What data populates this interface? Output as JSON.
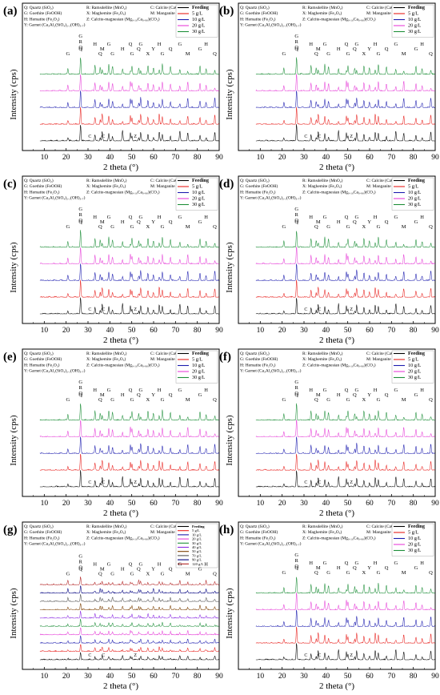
{
  "figure": {
    "colors": {
      "Feeding": "#000000",
      "5 g/L": "#e8201d",
      "10 g/L": "#1d1daf",
      "20 g/L": "#e641d8",
      "30 g/L": "#1f8f3a",
      "40 g/L": "#8a2be2",
      "50 g/L": "#7b3f00",
      "70 g/L": "#555555",
      "90 g/L": "#000080",
      "120 g/L": "#b22222"
    },
    "phase_legend": [
      "Q: Quartz (SiO₂)",
      "R: Ramsdellite (MnO₂)",
      "C: Calcite (CaCO₃)",
      "G: Goethite (FeOOH)",
      "X: Maghemite (Fe₂O₃)",
      "M: Manganite (MnOOH)",
      "H: Hematite (Fe₂O₃)",
      "Z: Calcite-magnesian (Mg₀.₁₀Ca₀.₉₀)(CO₃)",
      "Y: Garnet (Ca₃Al₂(SiO₄)₂.₁(OH)₃.₇)"
    ],
    "peak_labels": {
      "top": [
        "G",
        "Q",
        "H",
        "Q",
        "M",
        "G",
        "G",
        "H",
        "Q",
        "G",
        "Q",
        "G",
        "X",
        "Y",
        "H",
        "G",
        "Q",
        "G",
        "M",
        "G",
        "H",
        "Q",
        "G",
        "H",
        "Y",
        "G",
        "Q",
        "M",
        "H",
        "Q",
        "G",
        "Q",
        "M",
        "G",
        "H",
        "Q",
        "Q",
        "M",
        "G",
        "H"
      ],
      "bottom": [
        "C",
        "Z",
        "C"
      ]
    }
  },
  "chart_data": [
    {
      "panel": "(a)",
      "type": "line",
      "xlabel": "2 theta (°)",
      "ylabel": "Intensity (cps)",
      "xlim": [
        0,
        90
      ],
      "xticks": [
        10,
        20,
        30,
        40,
        50,
        60,
        70,
        80,
        90
      ],
      "series": [
        {
          "name": "Feeding"
        },
        {
          "name": "5 g/L"
        },
        {
          "name": "10 g/L"
        },
        {
          "name": "20 g/L"
        },
        {
          "name": "30 g/L"
        }
      ],
      "major_peaks_2theta": [
        20.8,
        26.6,
        33.2,
        35.6,
        36.5,
        39.5,
        41.2,
        45.8,
        49.4,
        50.1,
        53.2,
        54.1,
        57.4,
        59.9,
        62.6,
        64.0,
        67.7,
        72.0,
        75.6,
        81.2,
        84.0,
        88.0
      ]
    },
    {
      "panel": "(b)",
      "type": "line",
      "xlabel": "2 theta (°)",
      "ylabel": "Intensity (cps)",
      "xlim": [
        0,
        90
      ],
      "xticks": [
        10,
        20,
        30,
        40,
        50,
        60,
        70,
        80,
        90
      ],
      "series": [
        {
          "name": "Feeding"
        },
        {
          "name": "5 g/L"
        },
        {
          "name": "10 g/L"
        },
        {
          "name": "20 g/L"
        },
        {
          "name": "30 g/L"
        }
      ],
      "major_peaks_2theta": [
        20.8,
        26.6,
        33.2,
        35.6,
        36.5,
        39.5,
        41.2,
        45.8,
        49.4,
        50.1,
        53.2,
        54.1,
        57.4,
        59.9,
        62.6,
        64.0,
        67.7,
        72.0,
        75.6,
        81.2,
        84.0,
        88.0
      ]
    },
    {
      "panel": "(c)",
      "type": "line",
      "xlabel": "2 theta (°)",
      "ylabel": "Intensity (cps)",
      "xlim": [
        0,
        90
      ],
      "xticks": [
        10,
        20,
        30,
        40,
        50,
        60,
        70,
        80,
        90
      ],
      "series": [
        {
          "name": "Feeding"
        },
        {
          "name": "5 g/L"
        },
        {
          "name": "10 g/L"
        },
        {
          "name": "20 g/L"
        },
        {
          "name": "30 g/L"
        }
      ],
      "major_peaks_2theta": [
        20.8,
        26.6,
        33.2,
        35.6,
        36.5,
        39.5,
        41.2,
        45.8,
        49.4,
        50.1,
        53.2,
        54.1,
        57.4,
        59.9,
        62.6,
        64.0,
        67.7,
        72.0,
        75.6,
        81.2,
        84.0,
        88.0
      ]
    },
    {
      "panel": "(d)",
      "type": "line",
      "xlabel": "2 theta (°)",
      "ylabel": "Intensity (cps)",
      "xlim": [
        0,
        90
      ],
      "xticks": [
        10,
        20,
        30,
        40,
        50,
        60,
        70,
        80,
        90
      ],
      "series": [
        {
          "name": "Feeding"
        },
        {
          "name": "5 g/L"
        },
        {
          "name": "10 g/L"
        },
        {
          "name": "20 g/L"
        },
        {
          "name": "30 g/L"
        }
      ],
      "major_peaks_2theta": [
        20.8,
        26.6,
        33.2,
        35.6,
        36.5,
        39.5,
        41.2,
        45.8,
        49.4,
        50.1,
        53.2,
        54.1,
        57.4,
        59.9,
        62.6,
        64.0,
        67.7,
        72.0,
        75.6,
        81.2,
        84.0,
        88.0
      ]
    },
    {
      "panel": "(e)",
      "type": "line",
      "xlabel": "2 theta (°)",
      "ylabel": "Intensity (cps)",
      "xlim": [
        0,
        90
      ],
      "xticks": [
        10,
        20,
        30,
        40,
        50,
        60,
        70,
        80,
        90
      ],
      "series": [
        {
          "name": "Feeding"
        },
        {
          "name": "5 g/L"
        },
        {
          "name": "10 g/L"
        },
        {
          "name": "20 g/L"
        },
        {
          "name": "30 g/L"
        }
      ],
      "major_peaks_2theta": [
        20.8,
        26.6,
        33.2,
        35.6,
        36.5,
        39.5,
        41.2,
        45.8,
        49.4,
        50.1,
        53.2,
        54.1,
        57.4,
        59.9,
        62.6,
        64.0,
        67.7,
        72.0,
        75.6,
        81.2,
        84.0,
        88.0
      ]
    },
    {
      "panel": "(f)",
      "type": "line",
      "xlabel": "2 theta (°)",
      "ylabel": "Intensity (cps)",
      "xlim": [
        0,
        90
      ],
      "xticks": [
        10,
        20,
        30,
        40,
        50,
        60,
        70,
        80,
        90
      ],
      "series": [
        {
          "name": "Feeding"
        },
        {
          "name": "5 g/L"
        },
        {
          "name": "10 g/L"
        },
        {
          "name": "20 g/L"
        },
        {
          "name": "30 g/L"
        }
      ],
      "major_peaks_2theta": [
        20.8,
        26.6,
        33.2,
        35.6,
        36.5,
        39.5,
        41.2,
        45.8,
        49.4,
        50.1,
        53.2,
        54.1,
        57.4,
        59.9,
        62.6,
        64.0,
        67.7,
        72.0,
        75.6,
        81.2,
        84.0,
        88.0
      ]
    },
    {
      "panel": "(g)",
      "type": "line",
      "xlabel": "2 theta (°)",
      "ylabel": "Intensity (cps)",
      "xlim": [
        0,
        90
      ],
      "xticks": [
        10,
        20,
        30,
        40,
        50,
        60,
        70,
        80,
        90
      ],
      "series": [
        {
          "name": "Feeding"
        },
        {
          "name": "5 g/L"
        },
        {
          "name": "10 g/L"
        },
        {
          "name": "20 g/L"
        },
        {
          "name": "30 g/L"
        },
        {
          "name": "40 g/L"
        },
        {
          "name": "50 g/L"
        },
        {
          "name": "70 g/L"
        },
        {
          "name": "90 g/L"
        },
        {
          "name": "120 g/L"
        }
      ],
      "major_peaks_2theta": [
        20.8,
        26.6,
        33.2,
        35.6,
        36.5,
        39.5,
        41.2,
        45.8,
        49.4,
        50.1,
        53.2,
        54.1,
        57.4,
        59.9,
        62.6,
        64.0,
        67.7,
        72.0,
        75.6,
        81.2,
        84.0,
        88.0
      ]
    },
    {
      "panel": "(h)",
      "type": "line",
      "xlabel": "2 theta (°)",
      "ylabel": "Intensity (cps)",
      "xlim": [
        0,
        90
      ],
      "xticks": [
        10,
        20,
        30,
        40,
        50,
        60,
        70,
        80,
        90
      ],
      "series": [
        {
          "name": "Feeding"
        },
        {
          "name": "5 g/L"
        },
        {
          "name": "10 g/L"
        },
        {
          "name": "20 g/L"
        },
        {
          "name": "30 g/L"
        }
      ],
      "major_peaks_2theta": [
        20.8,
        26.6,
        33.2,
        35.6,
        36.5,
        39.5,
        41.2,
        45.8,
        49.4,
        50.1,
        53.2,
        54.1,
        57.4,
        59.9,
        62.6,
        64.0,
        67.7,
        72.0,
        75.6,
        81.2,
        84.0,
        88.0
      ]
    }
  ]
}
